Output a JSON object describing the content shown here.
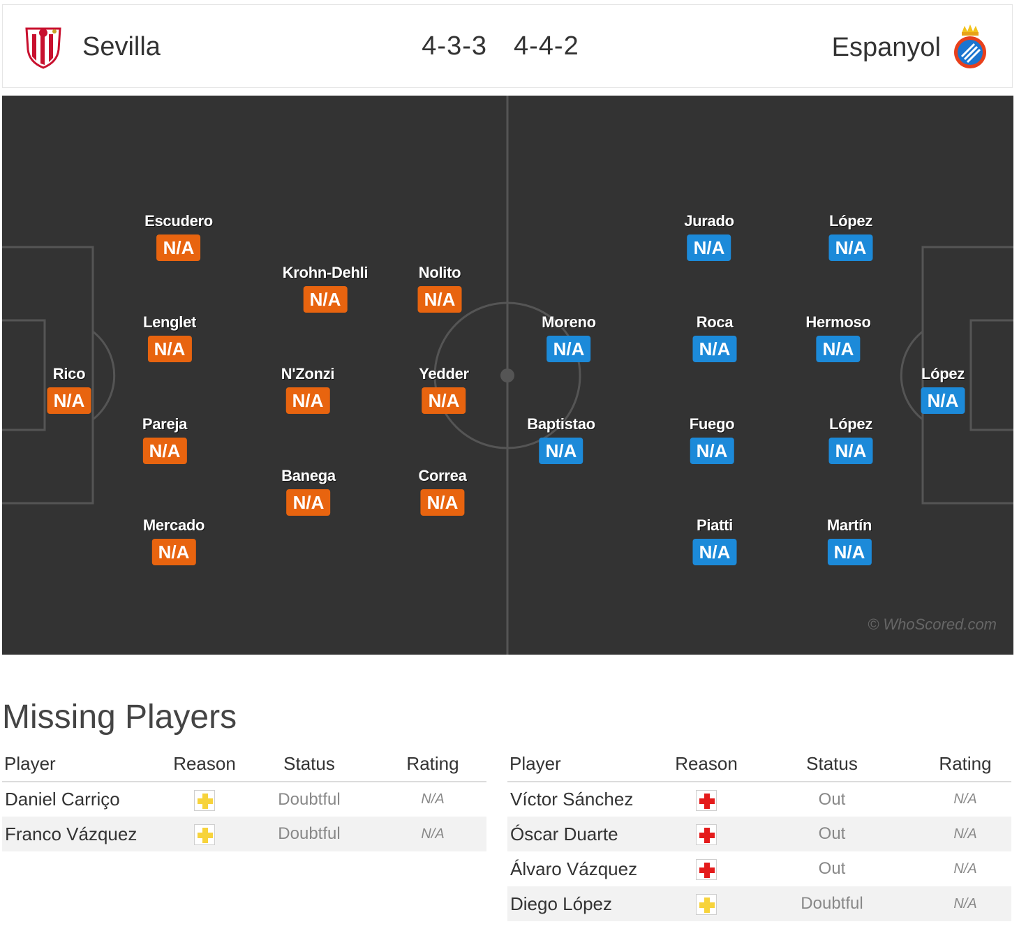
{
  "match": {
    "home": {
      "name": "Sevilla",
      "formation": "4-3-3",
      "logo": "sevilla-crest-icon"
    },
    "away": {
      "name": "Espanyol",
      "formation": "4-4-2",
      "logo": "espanyol-crest-icon"
    }
  },
  "colors": {
    "home": "#e8640f",
    "away": "#1c8ad9",
    "pitch": "#333333"
  },
  "lineup": {
    "home": [
      {
        "name": "Rico",
        "rating": "N/A"
      },
      {
        "name": "Escudero",
        "rating": "N/A"
      },
      {
        "name": "Lenglet",
        "rating": "N/A"
      },
      {
        "name": "Pareja",
        "rating": "N/A"
      },
      {
        "name": "Mercado",
        "rating": "N/A"
      },
      {
        "name": "Krohn-Dehli",
        "rating": "N/A"
      },
      {
        "name": "N'Zonzi",
        "rating": "N/A"
      },
      {
        "name": "Banega",
        "rating": "N/A"
      },
      {
        "name": "Nolito",
        "rating": "N/A"
      },
      {
        "name": "Yedder",
        "rating": "N/A"
      },
      {
        "name": "Correa",
        "rating": "N/A"
      }
    ],
    "away": [
      {
        "name": "López",
        "rating": "N/A"
      },
      {
        "name": "López",
        "rating": "N/A"
      },
      {
        "name": "Hermoso",
        "rating": "N/A"
      },
      {
        "name": "López",
        "rating": "N/A"
      },
      {
        "name": "Martín",
        "rating": "N/A"
      },
      {
        "name": "Jurado",
        "rating": "N/A"
      },
      {
        "name": "Roca",
        "rating": "N/A"
      },
      {
        "name": "Fuego",
        "rating": "N/A"
      },
      {
        "name": "Piatti",
        "rating": "N/A"
      },
      {
        "name": "Moreno",
        "rating": "N/A"
      },
      {
        "name": "Baptistao",
        "rating": "N/A"
      }
    ]
  },
  "watermark": "© WhoScored.com",
  "missing": {
    "title": "Missing Players",
    "columns": [
      "Player",
      "Reason",
      "Status",
      "Rating"
    ],
    "home": [
      {
        "player": "Daniel Carriço",
        "reason": "yellow-cross-icon",
        "status": "Doubtful",
        "rating": "N/A"
      },
      {
        "player": "Franco Vázquez",
        "reason": "yellow-cross-icon",
        "status": "Doubtful",
        "rating": "N/A"
      }
    ],
    "away": [
      {
        "player": "Víctor Sánchez",
        "reason": "red-cross-icon",
        "status": "Out",
        "rating": "N/A"
      },
      {
        "player": "Óscar Duarte",
        "reason": "red-cross-icon",
        "status": "Out",
        "rating": "N/A"
      },
      {
        "player": "Álvaro Vázquez",
        "reason": "red-cross-icon",
        "status": "Out",
        "rating": "N/A"
      },
      {
        "player": "Diego López",
        "reason": "yellow-cross-icon",
        "status": "Doubtful",
        "rating": "N/A"
      }
    ]
  }
}
